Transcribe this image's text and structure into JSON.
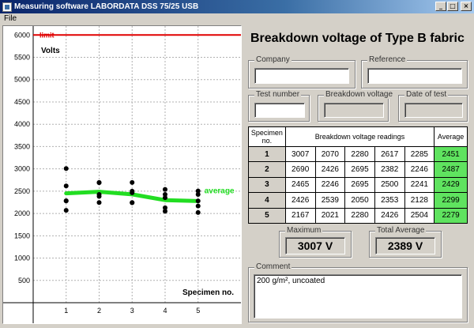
{
  "window": {
    "title": "Measuring software LABORDATA DSS 75/25 USB",
    "minimize_glyph": "_",
    "maximize_glyph": "□",
    "close_glyph": "×"
  },
  "menu": {
    "file": "File"
  },
  "chart_data": {
    "type": "scatter",
    "xlabel": "Specimen no.",
    "ylabel": "Volts",
    "ylim": [
      0,
      6200
    ],
    "xlim": [
      0,
      6.3
    ],
    "y_ticks": [
      500,
      1000,
      1500,
      2000,
      2500,
      3000,
      3500,
      4000,
      4500,
      5000,
      5500,
      6000
    ],
    "x_ticks": [
      1,
      2,
      3,
      4,
      5
    ],
    "grid": true,
    "limit": {
      "label": "limit",
      "value": 6000,
      "color": "#e00000"
    },
    "average_line": {
      "label": "average",
      "color": "#22dd22",
      "values": [
        2451,
        2487,
        2429,
        2299,
        2279
      ]
    },
    "points": [
      {
        "x": 1,
        "readings": [
          3007,
          2070,
          2280,
          2617,
          2285
        ]
      },
      {
        "x": 2,
        "readings": [
          2690,
          2426,
          2695,
          2382,
          2246
        ]
      },
      {
        "x": 3,
        "readings": [
          2465,
          2246,
          2695,
          2500,
          2241
        ]
      },
      {
        "x": 4,
        "readings": [
          2426,
          2539,
          2050,
          2353,
          2128
        ]
      },
      {
        "x": 5,
        "readings": [
          2167,
          2021,
          2280,
          2426,
          2504
        ]
      }
    ]
  },
  "header": {
    "title": "Breakdown voltage of Type B fabric"
  },
  "fields": {
    "company": {
      "label": "Company",
      "value": ""
    },
    "reference": {
      "label": "Reference",
      "value": ""
    },
    "test_number": {
      "label": "Test number",
      "value": ""
    },
    "breakdown_voltage": {
      "label": "Breakdown voltage",
      "value": ""
    },
    "date_of_test": {
      "label": "Date of test",
      "value": ""
    }
  },
  "table": {
    "col_specimen": "Specimen no.",
    "col_readings": "Breakdown voltage readings",
    "col_average": "Average",
    "rows": [
      {
        "no": "1",
        "readings": [
          "3007",
          "2070",
          "2280",
          "2617",
          "2285"
        ],
        "average": "2451"
      },
      {
        "no": "2",
        "readings": [
          "2690",
          "2426",
          "2695",
          "2382",
          "2246"
        ],
        "average": "2487"
      },
      {
        "no": "3",
        "readings": [
          "2465",
          "2246",
          "2695",
          "2500",
          "2241"
        ],
        "average": "2429"
      },
      {
        "no": "4",
        "readings": [
          "2426",
          "2539",
          "2050",
          "2353",
          "2128"
        ],
        "average": "2299"
      },
      {
        "no": "5",
        "readings": [
          "2167",
          "2021",
          "2280",
          "2426",
          "2504"
        ],
        "average": "2279"
      }
    ]
  },
  "summary": {
    "maximum": {
      "label": "Maximum",
      "value": "3007 V"
    },
    "total_average": {
      "label": "Total Average",
      "value": "2389 V"
    }
  },
  "comment": {
    "label": "Comment",
    "value": "200 g/m², uncoated"
  }
}
